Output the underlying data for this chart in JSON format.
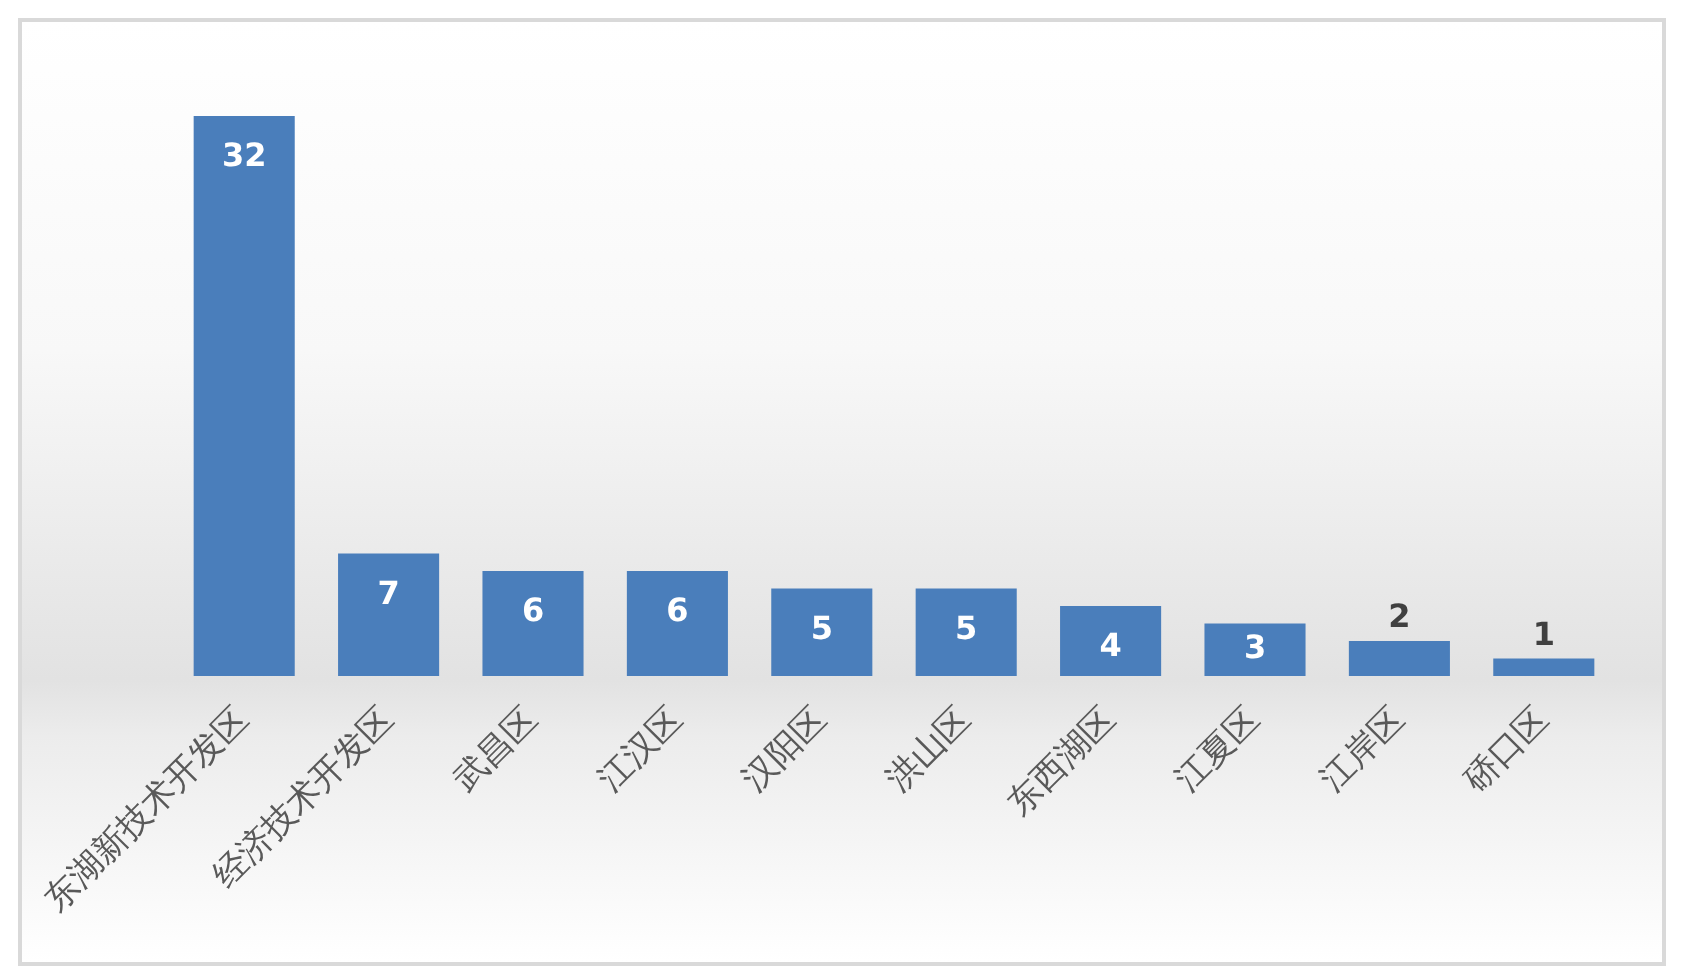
{
  "chart_data": {
    "type": "bar",
    "categories": [
      "东湖新技术开发区",
      "经济技术开发区",
      "武昌区",
      "江汉区",
      "汉阳区",
      "洪山区",
      "东西湖区",
      "江夏区",
      "江岸区",
      "硚口区"
    ],
    "values": [
      32,
      7,
      6,
      6,
      5,
      5,
      4,
      3,
      2,
      1
    ],
    "color": "#4a7ebb",
    "data_labels": true
  }
}
